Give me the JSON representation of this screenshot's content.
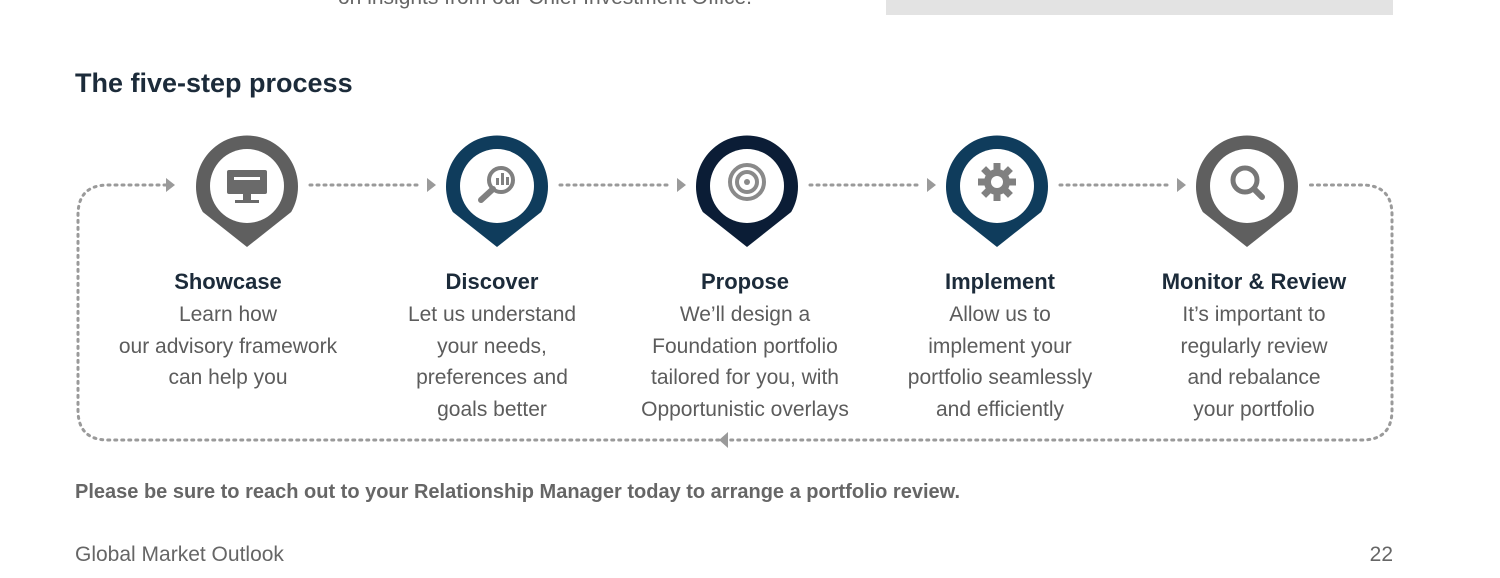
{
  "top_text": "on insights from our Chief Investment Office.",
  "section_title": "The five-step process",
  "steps": [
    {
      "title": "Showcase",
      "desc": "Learn how\nour advisory framework\ncan help you",
      "icon": "monitor-icon",
      "color": "#5f5f5f"
    },
    {
      "title": "Discover",
      "desc": "Let us understand\nyour needs,\npreferences and\ngoals better",
      "icon": "magnifier-chart-icon",
      "color": "#0f3c5c"
    },
    {
      "title": "Propose",
      "desc": "We’ll design a\nFoundation portfolio\ntailored for you, with\nOpportunistic overlays",
      "icon": "target-icon",
      "color": "#0b1d36"
    },
    {
      "title": "Implement",
      "desc": "Allow us to\nimplement your\nportfolio seamlessly\nand efficiently",
      "icon": "gear-icon",
      "color": "#0f3c5c"
    },
    {
      "title": "Monitor & Review",
      "desc": "It’s important to\nregularly review\nand rebalance\nyour portfolio",
      "icon": "search-icon",
      "color": "#5f5f5f"
    }
  ],
  "cta": "Please be sure to reach out to your Relationship Manager today to arrange a portfolio review.",
  "footer": {
    "publication": "Global Market Outlook",
    "page_number": "22"
  }
}
